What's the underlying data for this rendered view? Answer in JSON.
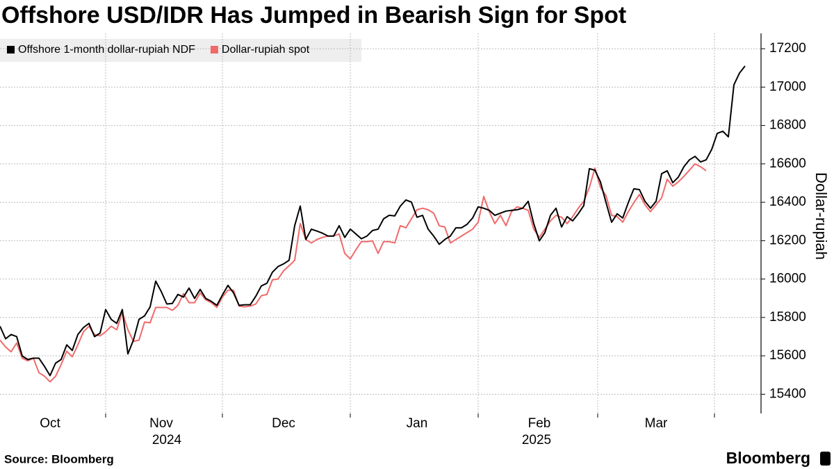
{
  "chart_data": {
    "type": "line",
    "title": "Offshore USD/IDR Has Jumped in Bearish Sign for Spot",
    "y_label": "Dollar-rupiah",
    "source": "Source: Bloomberg",
    "brand": "Bloomberg",
    "categories": [
      null,
      null,
      null,
      null,
      null,
      null,
      null,
      null,
      null,
      "Oct",
      null,
      null,
      null,
      null,
      null,
      null,
      null,
      null,
      null,
      null,
      null,
      null,
      null,
      null,
      null,
      null,
      null,
      null,
      null,
      "Nov",
      null,
      null,
      null,
      null,
      null,
      null,
      null,
      null,
      null,
      null,
      null,
      null,
      null,
      null,
      null,
      null,
      null,
      null,
      null,
      null,
      null,
      "Dec",
      null,
      null,
      null,
      null,
      null,
      null,
      null,
      null,
      null,
      null,
      null,
      null,
      null,
      null,
      null,
      null,
      null,
      null,
      null,
      null,
      null,
      null,
      null,
      "Jan",
      null,
      null,
      null,
      null,
      null,
      null,
      null,
      null,
      null,
      null,
      null,
      null,
      null,
      null,
      null,
      null,
      null,
      null,
      null,
      null,
      null,
      "Feb",
      null,
      null,
      null,
      null,
      null,
      null,
      null,
      null,
      null,
      null,
      null,
      null,
      null,
      null,
      null,
      null,
      null,
      null,
      null,
      null,
      "Mar",
      null,
      null,
      null,
      null,
      null,
      null,
      null,
      null,
      null,
      null,
      null,
      null,
      null,
      null,
      null,
      null
    ],
    "x_groups": [
      {
        "label": "2024",
        "count": 3
      },
      {
        "label": "2025",
        "count": 3
      }
    ],
    "series": [
      {
        "name": "Offshore 1-month dollar-rupiah NDF",
        "color": "#000000",
        "values": [
          15754,
          15689,
          15711,
          15700,
          15599,
          15581,
          15588,
          15588,
          15545,
          15497,
          15562,
          15581,
          15657,
          15628,
          15711,
          15747,
          15769,
          15700,
          15718,
          15841,
          15790,
          15769,
          15841,
          15610,
          15682,
          15790,
          15808,
          15855,
          15989,
          15935,
          15870,
          15873,
          15920,
          15906,
          15953,
          15899,
          15946,
          15899,
          15884,
          15863,
          15917,
          15967,
          15928,
          15863,
          15866,
          15866,
          15910,
          15964,
          15978,
          16036,
          16065,
          16079,
          16098,
          16278,
          16380,
          16206,
          16260,
          16250,
          16239,
          16224,
          16224,
          16278,
          16217,
          16260,
          16235,
          16210,
          16224,
          16253,
          16260,
          16314,
          16332,
          16329,
          16380,
          16412,
          16401,
          16322,
          16332,
          16260,
          16224,
          16181,
          16206,
          16224,
          16267,
          16267,
          16285,
          16318,
          16376,
          16369,
          16358,
          16332,
          16343,
          16354,
          16358,
          16361,
          16369,
          16405,
          16289,
          16199,
          16242,
          16332,
          16369,
          16271,
          16325,
          16303,
          16340,
          16383,
          16575,
          16567,
          16506,
          16398,
          16296,
          16340,
          16318,
          16398,
          16470,
          16466,
          16405,
          16369,
          16405,
          16549,
          16564,
          16502,
          16531,
          16585,
          16621,
          16639,
          16610,
          16621,
          16675,
          16759,
          16770,
          16741,
          17012,
          17073,
          17110
        ]
      },
      {
        "name": "Dollar-rupiah spot",
        "color": "#f06a6a",
        "values": [
          15682,
          15646,
          15621,
          15667,
          15588,
          15574,
          15588,
          15512,
          15494,
          15465,
          15494,
          15555,
          15624,
          15595,
          15657,
          15725,
          15754,
          15711,
          15704,
          15725,
          15754,
          15736,
          15827,
          15736,
          15675,
          15682,
          15776,
          15772,
          15852,
          15852,
          15852,
          15837,
          15863,
          15924,
          15877,
          15877,
          15928,
          15892,
          15877,
          15852,
          15906,
          15942,
          15942,
          15859,
          15855,
          15859,
          15870,
          15913,
          15920,
          15996,
          16000,
          16043,
          16069,
          16098,
          16289,
          16206,
          16188,
          16206,
          16217,
          16224,
          16224,
          16235,
          16134,
          16105,
          16152,
          16195,
          16195,
          16199,
          16134,
          16195,
          16195,
          16188,
          16278,
          16267,
          16314,
          16361,
          16369,
          16361,
          16343,
          16278,
          16271,
          16188,
          16206,
          16224,
          16242,
          16260,
          16296,
          16430,
          16351,
          16289,
          16332,
          16278,
          16351,
          16376,
          16369,
          16358,
          16260,
          16217,
          16260,
          16303,
          16332,
          16322,
          16289,
          16325,
          16369,
          16405,
          16477,
          16578,
          16477,
          16434,
          16332,
          16325,
          16296,
          16351,
          16398,
          16441,
          16387,
          16351,
          16387,
          16423,
          16520,
          16484,
          16506,
          16535,
          16567,
          16600,
          16585,
          16564,
          null,
          null,
          null,
          null,
          null,
          null,
          null
        ]
      }
    ],
    "ylim": [
      15300,
      17280
    ],
    "yticks": [
      15400,
      15600,
      15800,
      16000,
      16200,
      16400,
      16600,
      16800,
      17000,
      17200
    ],
    "grid": true,
    "legend": "top-left"
  }
}
